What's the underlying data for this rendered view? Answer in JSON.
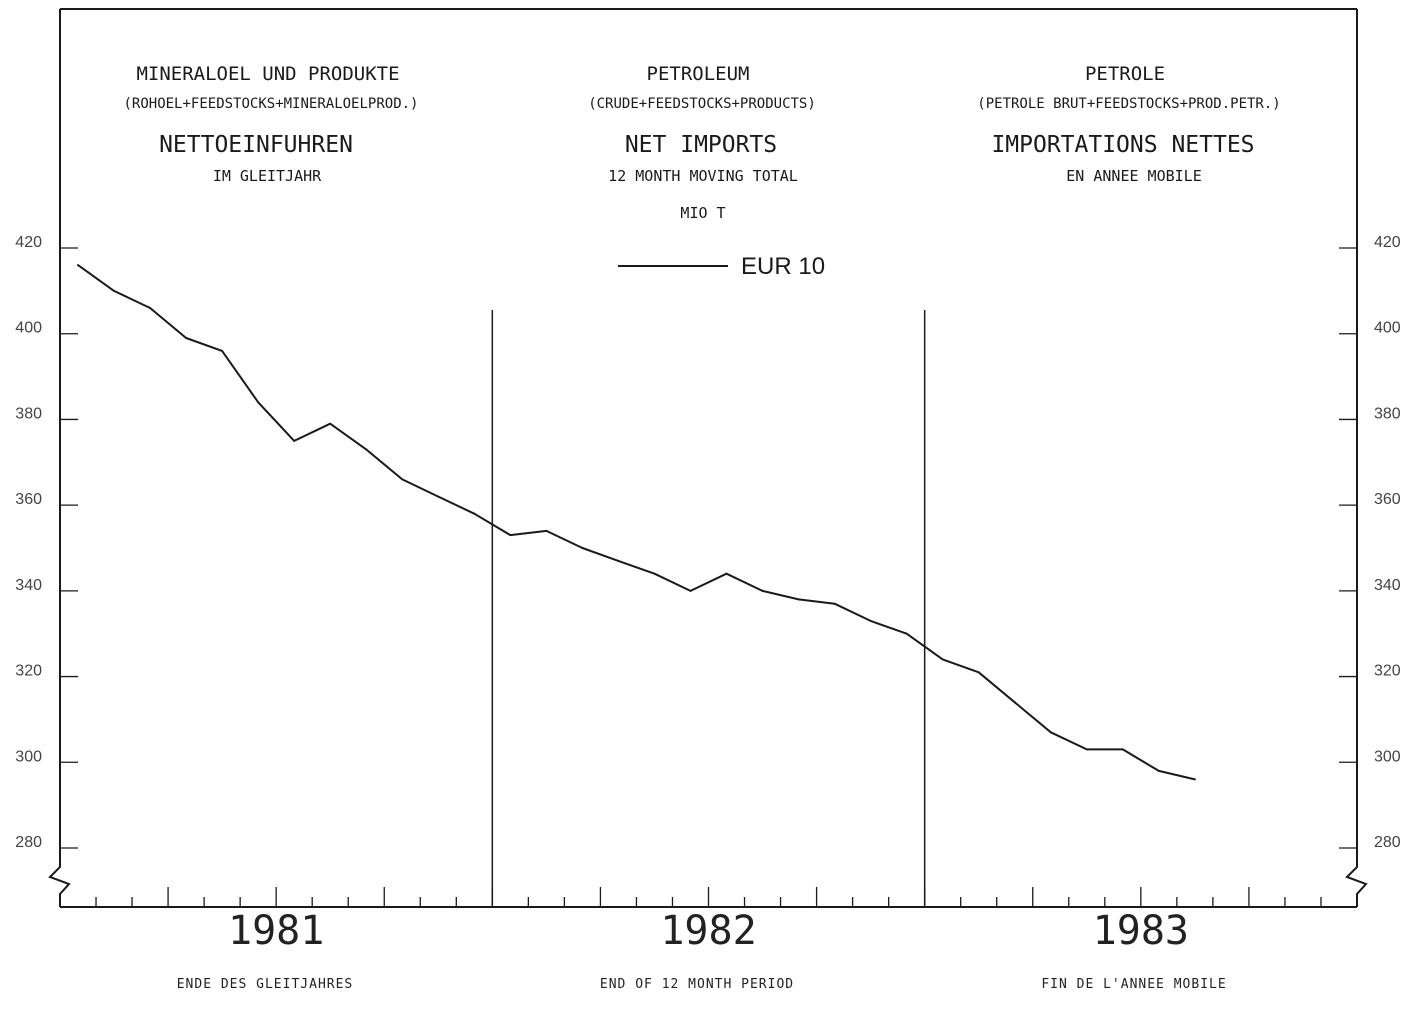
{
  "titles": {
    "de": {
      "heading": "MINERALOEL UND PRODUKTE",
      "subheading": "(ROHOEL+FEEDSTOCKS+MINERALOELPROD.)",
      "measure": "NETTOEINFUHREN",
      "period": "IM GLEITJAHR"
    },
    "en": {
      "heading": "PETROLEUM",
      "subheading": "(CRUDE+FEEDSTOCKS+PRODUCTS)",
      "measure": "NET IMPORTS",
      "period": "12 MONTH MOVING TOTAL",
      "unit": "MIO T"
    },
    "fr": {
      "heading": "PETROLE",
      "subheading": "(PETROLE BRUT+FEEDSTOCKS+PROD.PETR.)",
      "measure": "IMPORTATIONS NETTES",
      "period": "EN ANNEE MOBILE"
    }
  },
  "footer": {
    "de": "ENDE DES GLEITJAHRES",
    "en": "END OF 12 MONTH PERIOD",
    "fr": "FIN DE L'ANNEE MOBILE"
  },
  "chart_data": {
    "type": "line",
    "series": [
      {
        "name": "EUR 10",
        "color": "#1a1a1a",
        "points": [
          {
            "x": 1,
            "y": 416
          },
          {
            "x": 2,
            "y": 410
          },
          {
            "x": 3,
            "y": 406
          },
          {
            "x": 4,
            "y": 399
          },
          {
            "x": 5,
            "y": 396
          },
          {
            "x": 6,
            "y": 384
          },
          {
            "x": 7,
            "y": 375
          },
          {
            "x": 8,
            "y": 379
          },
          {
            "x": 9,
            "y": 373
          },
          {
            "x": 10,
            "y": 366
          },
          {
            "x": 11,
            "y": 362
          },
          {
            "x": 12,
            "y": 358
          },
          {
            "x": 13,
            "y": 353
          },
          {
            "x": 14,
            "y": 354
          },
          {
            "x": 15,
            "y": 350
          },
          {
            "x": 16,
            "y": 347
          },
          {
            "x": 17,
            "y": 344
          },
          {
            "x": 18,
            "y": 340
          },
          {
            "x": 19,
            "y": 344
          },
          {
            "x": 20,
            "y": 340
          },
          {
            "x": 21,
            "y": 338
          },
          {
            "x": 22,
            "y": 337
          },
          {
            "x": 23,
            "y": 333
          },
          {
            "x": 24,
            "y": 330
          },
          {
            "x": 25,
            "y": 324
          },
          {
            "x": 26,
            "y": 321
          },
          {
            "x": 27,
            "y": 314
          },
          {
            "x": 28,
            "y": 307
          },
          {
            "x": 29,
            "y": 303
          },
          {
            "x": 30,
            "y": 303
          },
          {
            "x": 31,
            "y": 298
          },
          {
            "x": 32,
            "y": 296
          }
        ]
      }
    ],
    "x_groups": [
      {
        "label": "1981",
        "months": [
          1,
          12
        ]
      },
      {
        "label": "1982",
        "months": [
          13,
          24
        ]
      },
      {
        "label": "1983",
        "months": [
          25,
          36
        ]
      }
    ],
    "xlim": [
      0.5,
      36.5
    ],
    "ylim": [
      270,
      425
    ],
    "yticks": [
      280,
      300,
      320,
      340,
      360,
      380,
      400,
      420
    ],
    "ytick_labels": [
      "280",
      "300",
      "320",
      "340",
      "360",
      "380",
      "400",
      "420"
    ],
    "axis_break": true,
    "grid": false,
    "legend_position": "top-center",
    "year_separators_after_month": [
      12,
      24
    ]
  }
}
